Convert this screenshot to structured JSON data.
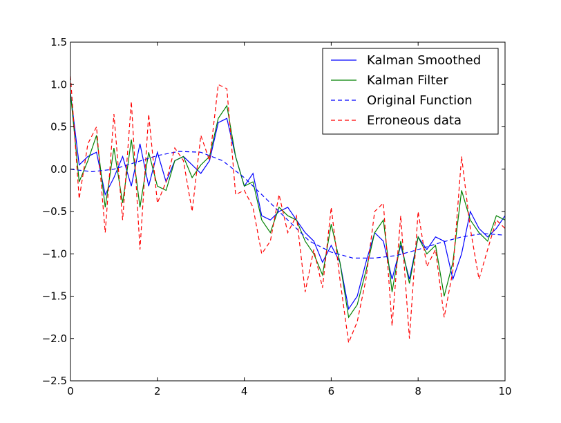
{
  "chart_data": {
    "type": "line",
    "title": "",
    "xlabel": "",
    "ylabel": "",
    "xlim": [
      0,
      10
    ],
    "ylim": [
      -2.5,
      1.5
    ],
    "x_ticks": [
      0,
      2,
      4,
      6,
      8,
      10
    ],
    "x_tick_labels": [
      "0",
      "2",
      "4",
      "6",
      "8",
      "10"
    ],
    "y_ticks": [
      1.5,
      1.0,
      0.5,
      0.0,
      -0.5,
      -1.0,
      -1.5,
      -2.0,
      -2.5
    ],
    "y_tick_labels": [
      "1.5",
      "1.0",
      "0.5",
      "0.0",
      "−0.5",
      "−1.0",
      "−1.5",
      "−2.0",
      "−2.5"
    ],
    "grid": false,
    "legend_position": "top-right",
    "series": [
      {
        "name": "Kalman Smoothed",
        "color": "#0000ff",
        "dash": "solid",
        "x": [
          0,
          0.2,
          0.4,
          0.6,
          0.8,
          1.0,
          1.2,
          1.4,
          1.6,
          1.8,
          2.0,
          2.2,
          2.4,
          2.6,
          2.8,
          3.0,
          3.2,
          3.4,
          3.6,
          3.8,
          4.0,
          4.2,
          4.4,
          4.6,
          4.8,
          5.0,
          5.2,
          5.4,
          5.6,
          5.8,
          6.0,
          6.2,
          6.4,
          6.6,
          6.8,
          7.0,
          7.2,
          7.4,
          7.6,
          7.8,
          8.0,
          8.2,
          8.4,
          8.6,
          8.8,
          9.0,
          9.2,
          9.4,
          9.6,
          9.8,
          10.0
        ],
        "y": [
          0.9,
          0.05,
          0.15,
          0.2,
          -0.3,
          -0.1,
          0.15,
          -0.2,
          0.3,
          -0.2,
          0.2,
          -0.15,
          0.1,
          0.15,
          0.05,
          -0.05,
          0.1,
          0.55,
          0.6,
          0.15,
          -0.2,
          -0.05,
          -0.55,
          -0.6,
          -0.5,
          -0.45,
          -0.6,
          -0.75,
          -0.85,
          -1.1,
          -0.9,
          -1.1,
          -1.65,
          -1.5,
          -1.1,
          -0.75,
          -0.85,
          -1.3,
          -0.9,
          -1.3,
          -0.8,
          -0.95,
          -0.8,
          -0.85,
          -1.3,
          -1.0,
          -0.5,
          -0.7,
          -0.8,
          -0.7,
          -0.55
        ]
      },
      {
        "name": "Kalman Filter",
        "color": "#008000",
        "dash": "solid",
        "x": [
          0,
          0.2,
          0.4,
          0.6,
          0.8,
          1.0,
          1.2,
          1.4,
          1.6,
          1.8,
          2.0,
          2.2,
          2.4,
          2.6,
          2.8,
          3.0,
          3.2,
          3.4,
          3.6,
          3.8,
          4.0,
          4.2,
          4.4,
          4.6,
          4.8,
          5.0,
          5.2,
          5.4,
          5.6,
          5.8,
          6.0,
          6.2,
          6.4,
          6.6,
          6.8,
          7.0,
          7.2,
          7.4,
          7.6,
          7.8,
          8.0,
          8.2,
          8.4,
          8.6,
          8.8,
          9.0,
          9.2,
          9.4,
          9.6,
          9.8,
          10.0
        ],
        "y": [
          0.9,
          -0.15,
          0.1,
          0.4,
          -0.45,
          0.25,
          -0.4,
          0.35,
          -0.45,
          0.2,
          -0.2,
          -0.25,
          0.1,
          0.15,
          -0.1,
          0.05,
          0.15,
          0.6,
          0.75,
          0.15,
          -0.2,
          -0.15,
          -0.6,
          -0.75,
          -0.45,
          -0.55,
          -0.6,
          -0.85,
          -1.0,
          -1.25,
          -0.65,
          -1.1,
          -1.75,
          -1.6,
          -1.2,
          -0.75,
          -0.6,
          -1.45,
          -0.85,
          -1.35,
          -0.8,
          -1.0,
          -0.9,
          -1.5,
          -1.1,
          -0.25,
          -0.6,
          -0.75,
          -0.85,
          -0.55,
          -0.6
        ]
      },
      {
        "name": "Original Function",
        "color": "#0000ff",
        "dash": "dashed",
        "x": [
          0,
          0.5,
          1.0,
          1.5,
          2.0,
          2.5,
          3.0,
          3.5,
          4.0,
          4.5,
          5.0,
          5.5,
          6.0,
          6.5,
          7.0,
          7.5,
          8.0,
          8.5,
          9.0,
          9.5,
          10.0
        ],
        "y": [
          0.0,
          -0.03,
          0.0,
          0.08,
          0.16,
          0.21,
          0.2,
          0.1,
          -0.1,
          -0.35,
          -0.6,
          -0.85,
          -0.98,
          -1.05,
          -1.05,
          -1.02,
          -0.95,
          -0.87,
          -0.8,
          -0.76,
          -0.78
        ]
      },
      {
        "name": "Erroneous data",
        "color": "#ff0000",
        "dash": "dashed",
        "x": [
          0,
          0.2,
          0.4,
          0.6,
          0.8,
          1.0,
          1.2,
          1.4,
          1.6,
          1.8,
          2.0,
          2.2,
          2.4,
          2.6,
          2.8,
          3.0,
          3.2,
          3.4,
          3.6,
          3.8,
          4.0,
          4.2,
          4.4,
          4.6,
          4.8,
          5.0,
          5.2,
          5.4,
          5.6,
          5.8,
          6.0,
          6.2,
          6.4,
          6.6,
          6.8,
          7.0,
          7.2,
          7.4,
          7.6,
          7.8,
          8.0,
          8.2,
          8.4,
          8.6,
          8.8,
          9.0,
          9.2,
          9.4,
          9.6,
          9.8,
          10.0
        ],
        "y": [
          1.1,
          -0.35,
          0.3,
          0.5,
          -0.75,
          0.65,
          -0.6,
          0.8,
          -0.95,
          0.65,
          -0.4,
          -0.15,
          0.25,
          0.1,
          -0.5,
          0.4,
          0.1,
          1.0,
          0.95,
          -0.3,
          -0.25,
          -0.45,
          -1.0,
          -0.85,
          -0.3,
          -0.75,
          -0.55,
          -1.45,
          -0.95,
          -1.4,
          -0.45,
          -1.3,
          -2.05,
          -1.8,
          -1.3,
          -0.5,
          -0.4,
          -1.85,
          -0.55,
          -2.0,
          -0.5,
          -1.15,
          -0.95,
          -1.75,
          -1.2,
          0.15,
          -0.7,
          -1.3,
          -0.95,
          -0.6,
          -0.7
        ]
      }
    ]
  }
}
